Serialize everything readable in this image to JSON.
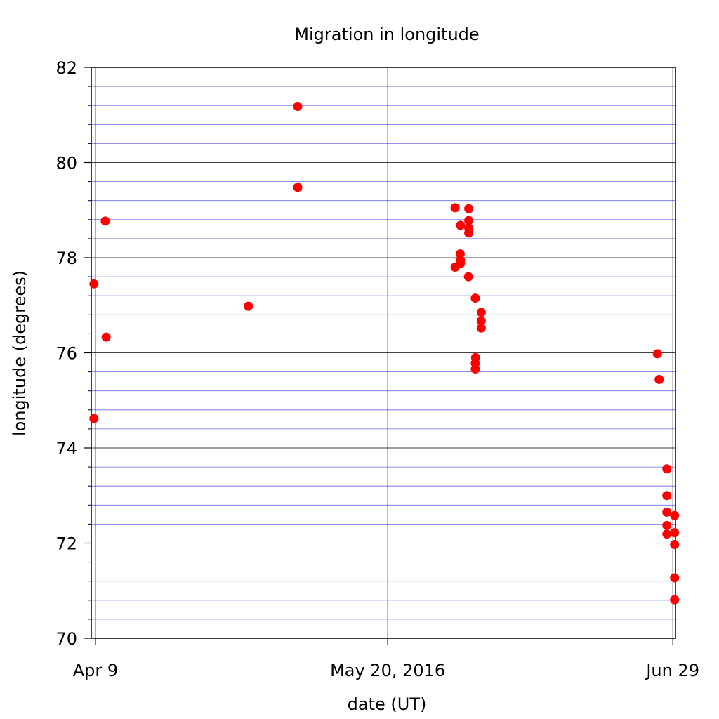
{
  "chart_data": {
    "type": "scatter",
    "title": "Migration in longitude",
    "xlabel": "date (UT)",
    "ylabel": "longitude (degrees)",
    "x_scale": "date",
    "xlim": [
      "2016-04-08T10:00",
      "2016-06-29T09:00"
    ],
    "ylim": [
      70,
      82
    ],
    "x_ticks": [
      {
        "value": "2016-04-09",
        "label": "Apr 9"
      },
      {
        "value": "2016-05-20",
        "label": "May 20, 2016"
      },
      {
        "value": "2016-06-29",
        "label": "Jun 29"
      }
    ],
    "y_ticks": [
      70,
      72,
      74,
      76,
      78,
      80,
      82
    ],
    "y_minor_step": 0.4,
    "grid": {
      "major": true,
      "minor": true,
      "major_color": "#000000",
      "minor_color": "#6a6ae8"
    },
    "marker_color": "#ff0000",
    "series": [
      {
        "points": [
          {
            "x": "2016-04-08T19:00",
            "y": 77.45
          },
          {
            "x": "2016-04-08T19:00",
            "y": 74.62
          },
          {
            "x": "2016-04-10T09:00",
            "y": 78.77
          },
          {
            "x": "2016-04-10T12:00",
            "y": 76.33
          },
          {
            "x": "2016-04-30T11:00",
            "y": 76.98
          },
          {
            "x": "2016-05-07T09:00",
            "y": 81.18
          },
          {
            "x": "2016-05-07T09:00",
            "y": 79.48
          },
          {
            "x": "2016-05-29T11:00",
            "y": 79.05
          },
          {
            "x": "2016-05-29T11:00",
            "y": 77.8
          },
          {
            "x": "2016-05-30T05:00",
            "y": 78.68
          },
          {
            "x": "2016-05-30T04:00",
            "y": 78.08
          },
          {
            "x": "2016-05-30T05:00",
            "y": 77.95
          },
          {
            "x": "2016-05-30T05:00",
            "y": 77.88
          },
          {
            "x": "2016-05-31T09:00",
            "y": 79.03
          },
          {
            "x": "2016-05-31T09:00",
            "y": 78.78
          },
          {
            "x": "2016-05-31T09:00",
            "y": 78.62
          },
          {
            "x": "2016-05-31T09:00",
            "y": 78.52
          },
          {
            "x": "2016-05-31T08:00",
            "y": 77.6
          },
          {
            "x": "2016-06-01T07:00",
            "y": 77.15
          },
          {
            "x": "2016-06-01T08:00",
            "y": 75.9
          },
          {
            "x": "2016-06-01T07:00",
            "y": 75.78
          },
          {
            "x": "2016-06-01T07:00",
            "y": 75.66
          },
          {
            "x": "2016-06-02T03:00",
            "y": 76.85
          },
          {
            "x": "2016-06-02T03:00",
            "y": 76.67
          },
          {
            "x": "2016-06-02T03:00",
            "y": 76.52
          },
          {
            "x": "2016-06-26T20:00",
            "y": 75.98
          },
          {
            "x": "2016-06-27T02:00",
            "y": 75.44
          },
          {
            "x": "2016-06-28T04:00",
            "y": 73.56
          },
          {
            "x": "2016-06-28T04:00",
            "y": 73.0
          },
          {
            "x": "2016-06-28T04:00",
            "y": 72.65
          },
          {
            "x": "2016-06-28T04:00",
            "y": 72.37
          },
          {
            "x": "2016-06-28T04:00",
            "y": 72.19
          },
          {
            "x": "2016-06-29T06:00",
            "y": 72.58
          },
          {
            "x": "2016-06-29T06:00",
            "y": 72.22
          },
          {
            "x": "2016-06-29T06:00",
            "y": 71.97
          },
          {
            "x": "2016-06-29T06:00",
            "y": 71.27
          },
          {
            "x": "2016-06-29T06:00",
            "y": 70.81
          }
        ]
      }
    ]
  }
}
